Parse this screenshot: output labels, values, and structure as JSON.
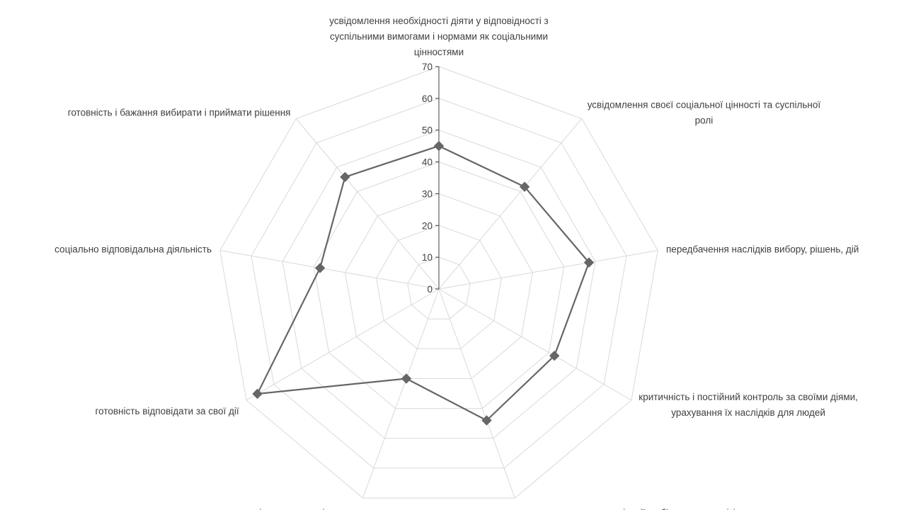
{
  "chart_data": {
    "type": "radar",
    "title": "",
    "rmax": 70,
    "rticks": [
      0,
      10,
      20,
      30,
      40,
      50,
      60,
      70
    ],
    "grid": true,
    "legend": "none",
    "categories": [
      [
        "усвідомлення необхідності діяти у відповідності з",
        "суспільними вимогами і нормами як соціальними",
        "цінностями"
      ],
      [
        "усвідомлення своєї соціальної цінності та суспільної",
        "ролі"
      ],
      [
        "передбачення наслідків вибору, рішень, дій"
      ],
      [
        "критичність і постійний контроль за своїми діями,",
        "урахування їх наслідків для людей"
      ],
      [
        "прагнення до самореалізації у об’єктивному світі"
      ],
      [
        "самооцінка та самозвітування"
      ],
      [
        "готовність відповідати за свої дії"
      ],
      [
        "соціально відповідальна діяльність"
      ],
      [
        "готовність і бажання вибирати і приймати рішення"
      ]
    ],
    "series": [
      {
        "values": [
          45,
          42,
          48,
          42,
          44,
          30,
          66,
          38,
          46
        ]
      }
    ],
    "colors": {
      "line": "#666666",
      "marker": "#666666",
      "grid": "#d9d9d9",
      "axis": "#404040",
      "text": "#404040"
    }
  }
}
